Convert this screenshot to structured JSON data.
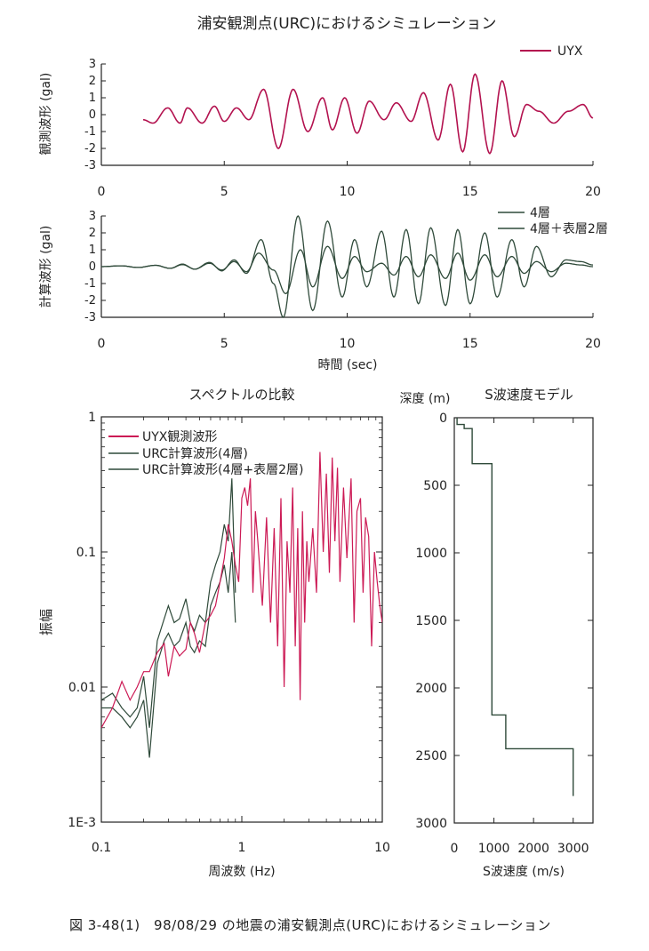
{
  "figure_caption": "図 3-48(1)　98/08/29 の地震の浦安観測点(URC)におけるシミュレーション",
  "colors": {
    "observed": "#b3124f",
    "model": "#2f4a3a",
    "axis": "#222222"
  },
  "chart_data": [
    {
      "id": "observed_waveform",
      "type": "line",
      "title": "浦安観測点(URC)におけるシミュレーション",
      "ylabel": "観測波形 (gal)",
      "xlim": [
        0,
        20
      ],
      "ylim": [
        -3,
        3
      ],
      "x_ticks": [
        0,
        5,
        10,
        15,
        20
      ],
      "y_ticks": [
        3,
        2,
        1,
        0,
        -1,
        -2,
        -3
      ],
      "legend": "top-right",
      "series": [
        {
          "name": "UYX",
          "peaks": [
            [
              1.7,
              -0.3
            ],
            [
              2.1,
              -0.5
            ],
            [
              2.7,
              0.4
            ],
            [
              3.2,
              -0.5
            ],
            [
              3.5,
              0.4
            ],
            [
              4.1,
              -0.5
            ],
            [
              4.6,
              0.5
            ],
            [
              5.0,
              -0.4
            ],
            [
              5.5,
              0.4
            ],
            [
              6.0,
              -0.3
            ],
            [
              6.6,
              1.5
            ],
            [
              7.2,
              -2.0
            ],
            [
              7.8,
              1.5
            ],
            [
              8.4,
              -1.0
            ],
            [
              9.0,
              1.0
            ],
            [
              9.4,
              -0.9
            ],
            [
              9.9,
              1.0
            ],
            [
              10.4,
              -1.1
            ],
            [
              10.9,
              0.8
            ],
            [
              11.5,
              -0.3
            ],
            [
              12.0,
              0.7
            ],
            [
              12.6,
              -0.4
            ],
            [
              13.1,
              1.3
            ],
            [
              13.7,
              -1.5
            ],
            [
              14.2,
              1.8
            ],
            [
              14.7,
              -2.2
            ],
            [
              15.2,
              2.4
            ],
            [
              15.8,
              -2.3
            ],
            [
              16.3,
              2.0
            ],
            [
              16.8,
              -1.3
            ],
            [
              17.3,
              0.6
            ],
            [
              17.8,
              0.2
            ],
            [
              18.4,
              -0.5
            ],
            [
              19.0,
              0.2
            ],
            [
              19.6,
              0.6
            ],
            [
              20.0,
              -0.2
            ]
          ]
        }
      ]
    },
    {
      "id": "computed_waveform",
      "type": "line",
      "xlabel": "時間 (sec)",
      "ylabel": "計算波形 (gal)",
      "xlim": [
        0,
        20
      ],
      "ylim": [
        -3,
        3
      ],
      "x_ticks": [
        0,
        5,
        10,
        15,
        20
      ],
      "y_ticks": [
        3,
        2,
        1,
        0,
        -1,
        -2,
        -3
      ],
      "legend": "top-right",
      "series": [
        {
          "name": "4層",
          "peaks": [
            [
              0,
              0
            ],
            [
              0.8,
              0.05
            ],
            [
              1.5,
              -0.05
            ],
            [
              2.2,
              0.08
            ],
            [
              2.8,
              -0.1
            ],
            [
              3.3,
              0.12
            ],
            [
              3.8,
              -0.15
            ],
            [
              4.4,
              0.2
            ],
            [
              4.9,
              -0.2
            ],
            [
              5.4,
              0.3
            ],
            [
              5.9,
              -0.3
            ],
            [
              6.4,
              0.8
            ],
            [
              7.0,
              -0.2
            ],
            [
              7.5,
              -1.6
            ],
            [
              8.1,
              1.0
            ],
            [
              8.6,
              -1.2
            ],
            [
              9.2,
              1.2
            ],
            [
              9.8,
              -0.7
            ],
            [
              10.3,
              0.6
            ],
            [
              10.8,
              -0.3
            ],
            [
              11.4,
              0.2
            ],
            [
              11.9,
              -0.5
            ],
            [
              12.4,
              0.6
            ],
            [
              12.9,
              -0.6
            ],
            [
              13.4,
              0.7
            ],
            [
              14.0,
              -0.7
            ],
            [
              14.5,
              0.8
            ],
            [
              15.0,
              -0.8
            ],
            [
              15.6,
              0.7
            ],
            [
              16.1,
              -0.6
            ],
            [
              16.7,
              0.6
            ],
            [
              17.2,
              -0.4
            ],
            [
              17.7,
              0.3
            ],
            [
              18.3,
              -0.3
            ],
            [
              18.9,
              0.2
            ],
            [
              19.5,
              0.1
            ],
            [
              20.0,
              0.0
            ]
          ]
        },
        {
          "name": "4層＋表層2層",
          "peaks": [
            [
              0,
              0
            ],
            [
              0.8,
              0.05
            ],
            [
              1.5,
              -0.05
            ],
            [
              2.2,
              0.08
            ],
            [
              2.8,
              -0.1
            ],
            [
              3.3,
              0.15
            ],
            [
              3.8,
              -0.15
            ],
            [
              4.4,
              0.25
            ],
            [
              4.9,
              -0.25
            ],
            [
              5.4,
              0.4
            ],
            [
              5.9,
              -0.4
            ],
            [
              6.5,
              1.6
            ],
            [
              7.0,
              -1.0
            ],
            [
              7.4,
              -3.0
            ],
            [
              8.0,
              3.0
            ],
            [
              8.6,
              -2.6
            ],
            [
              9.2,
              2.7
            ],
            [
              9.8,
              -1.8
            ],
            [
              10.3,
              1.6
            ],
            [
              10.8,
              -1.2
            ],
            [
              11.4,
              2.1
            ],
            [
              11.9,
              -1.8
            ],
            [
              12.4,
              2.2
            ],
            [
              12.9,
              -2.2
            ],
            [
              13.4,
              2.3
            ],
            [
              14.0,
              -2.3
            ],
            [
              14.5,
              2.2
            ],
            [
              15.0,
              -2.2
            ],
            [
              15.6,
              2.0
            ],
            [
              16.1,
              -1.8
            ],
            [
              16.7,
              1.6
            ],
            [
              17.2,
              -1.2
            ],
            [
              17.7,
              1.2
            ],
            [
              18.3,
              -0.6
            ],
            [
              18.9,
              0.4
            ],
            [
              19.5,
              0.3
            ],
            [
              20.0,
              0.1
            ]
          ]
        }
      ]
    },
    {
      "id": "spectrum",
      "type": "line",
      "title": "スペクトルの比較",
      "xlabel": "周波数 (Hz)",
      "ylabel": "振幅",
      "x_scale": "log",
      "y_scale": "log",
      "xlim": [
        0.1,
        10
      ],
      "ylim": [
        0.001,
        1
      ],
      "x_tick_labels": [
        "0.1",
        "1",
        "10"
      ],
      "y_tick_labels": [
        "1",
        "0.1",
        "0.01",
        "1E-3"
      ],
      "legend": "top-left",
      "series": [
        {
          "name": "UYX観測波形",
          "x": [
            0.1,
            0.12,
            0.14,
            0.16,
            0.18,
            0.2,
            0.22,
            0.25,
            0.28,
            0.3,
            0.33,
            0.36,
            0.4,
            0.43,
            0.46,
            0.5,
            0.55,
            0.6,
            0.65,
            0.7,
            0.75,
            0.8,
            0.85,
            0.9,
            0.95,
            1.0,
            1.05,
            1.1,
            1.15,
            1.2,
            1.25,
            1.3,
            1.4,
            1.5,
            1.6,
            1.7,
            1.8,
            1.9,
            2.0,
            2.1,
            2.2,
            2.3,
            2.4,
            2.5,
            2.6,
            2.7,
            2.8,
            2.9,
            3.0,
            3.2,
            3.4,
            3.6,
            3.8,
            4.0,
            4.2,
            4.4,
            4.6,
            4.8,
            5.0,
            5.3,
            5.6,
            6.0,
            6.3,
            6.6,
            7.0,
            7.3,
            7.6,
            8.0,
            8.4,
            8.8,
            9.2,
            9.6,
            10.0
          ],
          "y": [
            0.005,
            0.007,
            0.011,
            0.008,
            0.01,
            0.013,
            0.013,
            0.018,
            0.021,
            0.012,
            0.02,
            0.017,
            0.019,
            0.03,
            0.025,
            0.018,
            0.03,
            0.034,
            0.04,
            0.06,
            0.09,
            0.16,
            0.12,
            0.08,
            0.06,
            0.25,
            0.3,
            0.22,
            0.35,
            0.05,
            0.2,
            0.12,
            0.04,
            0.18,
            0.03,
            0.15,
            0.02,
            0.25,
            0.01,
            0.12,
            0.05,
            0.3,
            0.02,
            0.15,
            0.008,
            0.2,
            0.03,
            0.12,
            0.06,
            0.15,
            0.05,
            0.55,
            0.1,
            0.38,
            0.07,
            0.5,
            0.12,
            0.42,
            0.06,
            0.3,
            0.09,
            0.35,
            0.03,
            0.2,
            0.25,
            0.05,
            0.18,
            0.13,
            0.02,
            0.1,
            0.06,
            0.04,
            0.03
          ]
        },
        {
          "name": "URC計算波形(4層)",
          "x": [
            0.1,
            0.12,
            0.14,
            0.16,
            0.18,
            0.2,
            0.22,
            0.25,
            0.28,
            0.3,
            0.33,
            0.36,
            0.4,
            0.43,
            0.46,
            0.5,
            0.55,
            0.6,
            0.65,
            0.7,
            0.75,
            0.8,
            0.85,
            0.9
          ],
          "y": [
            0.007,
            0.007,
            0.006,
            0.005,
            0.006,
            0.008,
            0.003,
            0.015,
            0.022,
            0.025,
            0.02,
            0.022,
            0.03,
            0.02,
            0.018,
            0.022,
            0.02,
            0.04,
            0.05,
            0.06,
            0.08,
            0.05,
            0.1,
            0.03
          ]
        },
        {
          "name": "URC計算波形(4層+表層2層)",
          "x": [
            0.1,
            0.12,
            0.14,
            0.16,
            0.18,
            0.2,
            0.22,
            0.25,
            0.28,
            0.3,
            0.33,
            0.36,
            0.4,
            0.43,
            0.46,
            0.5,
            0.55,
            0.6,
            0.65,
            0.7,
            0.75,
            0.8,
            0.85,
            0.9
          ],
          "y": [
            0.008,
            0.009,
            0.007,
            0.006,
            0.007,
            0.012,
            0.005,
            0.022,
            0.032,
            0.04,
            0.03,
            0.032,
            0.045,
            0.03,
            0.026,
            0.034,
            0.03,
            0.06,
            0.08,
            0.1,
            0.16,
            0.12,
            0.35,
            0.05
          ]
        }
      ]
    },
    {
      "id": "velocity_model",
      "type": "line",
      "title": "S波速度モデル",
      "depth_label": "深度 (m)",
      "xlabel": "S波速度 (m/s)",
      "xlim": [
        0,
        3500
      ],
      "ylim": [
        0,
        3000
      ],
      "x_ticks": [
        0,
        1000,
        2000,
        3000
      ],
      "y_ticks": [
        0,
        500,
        1000,
        1500,
        2000,
        2500,
        3000
      ],
      "profile": {
        "velocity": [
          70,
          70,
          250,
          250,
          450,
          450,
          950,
          950,
          1300,
          1300,
          3000,
          3000
        ],
        "depth": [
          0,
          50,
          50,
          80,
          80,
          340,
          340,
          2200,
          2200,
          2450,
          2450,
          2800
        ]
      }
    }
  ]
}
